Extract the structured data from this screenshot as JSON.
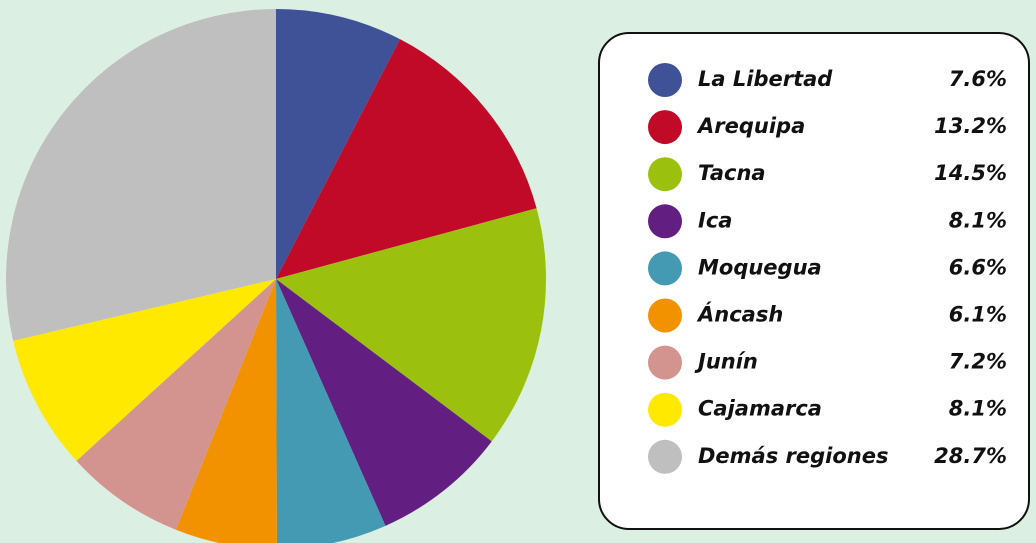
{
  "chart_data": {
    "type": "pie",
    "categories": [
      "La Libertad",
      "Arequipa",
      "Tacna",
      "Ica",
      "Moquegua",
      "Áncash",
      "Junín",
      "Cajamarca",
      "Demás regiones"
    ],
    "values": [
      7.6,
      13.2,
      14.5,
      8.1,
      6.6,
      6.1,
      7.2,
      8.1,
      28.7
    ],
    "value_labels": [
      "7.6%",
      "13.2%",
      "14.5%",
      "8.1%",
      "6.6%",
      "6.1%",
      "7.2%",
      "8.1%",
      "28.7%"
    ],
    "colors": [
      "#3f5197",
      "#c00a27",
      "#9bc10e",
      "#621f81",
      "#449ab3",
      "#f39200",
      "#d39490",
      "#ffe900",
      "#bfbfbf"
    ],
    "legend": "right"
  }
}
